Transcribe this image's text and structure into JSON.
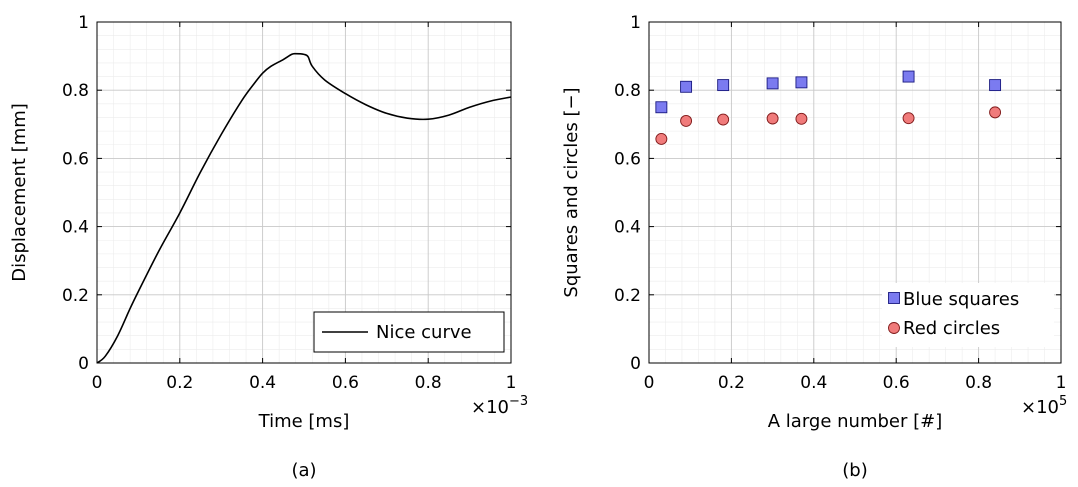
{
  "chart_data": [
    {
      "type": "line",
      "panel": "(a)",
      "caption": "(a)",
      "xlabel": "Time [ms]",
      "ylabel": "Displacement [mm]",
      "x_multiplier": "×10−3",
      "xlim": [
        0,
        1
      ],
      "ylim": [
        0,
        1
      ],
      "x_ticks": [
        "0",
        "0.2",
        "0.4",
        "0.6",
        "0.8",
        "1"
      ],
      "y_ticks": [
        "0",
        "0.2",
        "0.4",
        "0.6",
        "0.8",
        "1"
      ],
      "grid": true,
      "legend_position": "bottom-right",
      "series": [
        {
          "name": "Nice curve",
          "color": "#000000",
          "x": [
            0,
            0.02,
            0.05,
            0.08,
            0.1,
            0.15,
            0.2,
            0.25,
            0.3,
            0.35,
            0.38,
            0.4,
            0.42,
            0.45,
            0.47,
            0.48,
            0.5,
            0.51,
            0.52,
            0.55,
            0.6,
            0.65,
            0.7,
            0.75,
            0.8,
            0.85,
            0.9,
            0.95,
            1.0
          ],
          "y": [
            0,
            0.02,
            0.08,
            0.16,
            0.21,
            0.33,
            0.44,
            0.56,
            0.67,
            0.77,
            0.82,
            0.85,
            0.87,
            0.89,
            0.905,
            0.907,
            0.905,
            0.898,
            0.87,
            0.83,
            0.79,
            0.757,
            0.732,
            0.718,
            0.715,
            0.727,
            0.75,
            0.768,
            0.78
          ]
        }
      ]
    },
    {
      "type": "scatter",
      "panel": "(b)",
      "caption": "(b)",
      "xlabel": "A large number [#]",
      "ylabel": "Squares and circles [−]",
      "x_multiplier": "×105",
      "xlim": [
        0,
        1
      ],
      "ylim": [
        0,
        1
      ],
      "x_ticks": [
        "0",
        "0.2",
        "0.4",
        "0.6",
        "0.8",
        "1"
      ],
      "y_ticks": [
        "0",
        "0.2",
        "0.4",
        "0.6",
        "0.8",
        "1"
      ],
      "grid": true,
      "legend_position": "bottom-right",
      "series": [
        {
          "name": "Blue squares",
          "marker": "square",
          "color": "#7b7bf0",
          "x": [
            0.03,
            0.09,
            0.18,
            0.3,
            0.37,
            0.63,
            0.84
          ],
          "y": [
            0.75,
            0.81,
            0.815,
            0.82,
            0.823,
            0.84,
            0.815
          ]
        },
        {
          "name": "Red circles",
          "marker": "circle",
          "color": "#f07b7b",
          "x": [
            0.03,
            0.09,
            0.18,
            0.3,
            0.37,
            0.63,
            0.84
          ],
          "y": [
            0.657,
            0.71,
            0.714,
            0.717,
            0.716,
            0.718,
            0.735
          ]
        }
      ]
    }
  ]
}
